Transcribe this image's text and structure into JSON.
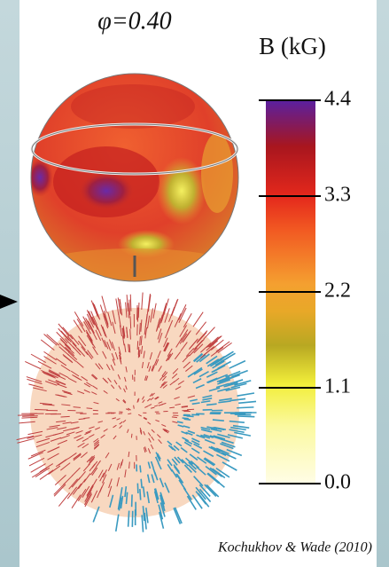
{
  "figure": {
    "title": "φ=0.40",
    "colorbar": {
      "label": "B (kG)",
      "clim": [
        0,
        4.4
      ],
      "ticks": [
        {
          "value": 0,
          "label": "0.0"
        },
        {
          "value": 1.1,
          "label": "1.1"
        },
        {
          "value": 2.2,
          "label": "2.2"
        },
        {
          "value": 3.3,
          "label": "3.3"
        },
        {
          "value": 4.4,
          "label": "4.4"
        }
      ]
    },
    "credit": "Kochukhov & Wade (2010)"
  }
}
